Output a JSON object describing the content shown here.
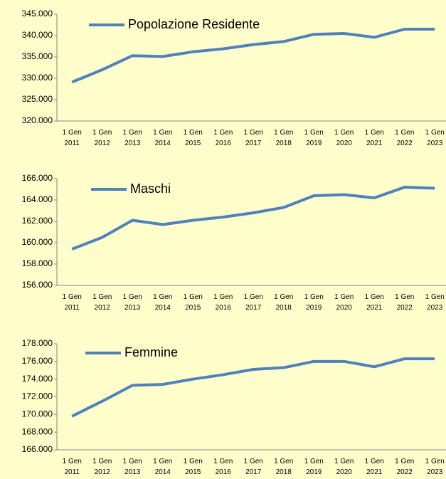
{
  "chart_data": [
    {
      "type": "line",
      "categories": [
        "1 Gen 2011",
        "1 Gen 2012",
        "1 Gen 2013",
        "1 Gen 2014",
        "1 Gen 2015",
        "1 Gen 2016",
        "1 Gen 2017",
        "1 Gen 2018",
        "1 Gen 2019",
        "1 Gen 2020",
        "1 Gen 2021",
        "1 Gen 2022",
        "1 Gen 2023"
      ],
      "series": [
        {
          "name": "Popolazione Residente",
          "color": "#4f81bd",
          "values": [
            329100,
            332000,
            335300,
            335100,
            336200,
            336900,
            337900,
            338600,
            340300,
            340500,
            339600,
            341500,
            341500
          ]
        }
      ],
      "ylim": [
        320000,
        345000
      ],
      "yticks": [
        {
          "value": 320000,
          "label": "320.000"
        },
        {
          "value": 325000,
          "label": "325.000"
        },
        {
          "value": 330000,
          "label": "330.000"
        },
        {
          "value": 335000,
          "label": "335.000"
        },
        {
          "value": 340000,
          "label": "340.000"
        },
        {
          "value": 345000,
          "label": "345.000"
        }
      ]
    },
    {
      "type": "line",
      "categories": [
        "1 Gen 2011",
        "1 Gen 2012",
        "1 Gen 2013",
        "1 Gen 2014",
        "1 Gen 2015",
        "1 Gen 2016",
        "1 Gen 2017",
        "1 Gen 2018",
        "1 Gen 2019",
        "1 Gen 2020",
        "1 Gen 2021",
        "1 Gen 2022",
        "1 Gen 2023"
      ],
      "series": [
        {
          "name": "Maschi",
          "color": "#4f81bd",
          "values": [
            159400,
            160500,
            162100,
            161700,
            162100,
            162400,
            162800,
            163300,
            164400,
            164500,
            164200,
            165200,
            165100
          ]
        }
      ],
      "ylim": [
        156000,
        166000
      ],
      "yticks": [
        {
          "value": 156000,
          "label": "156.000"
        },
        {
          "value": 158000,
          "label": "158.000"
        },
        {
          "value": 160000,
          "label": "160.000"
        },
        {
          "value": 162000,
          "label": "162.000"
        },
        {
          "value": 164000,
          "label": "164.000"
        },
        {
          "value": 166000,
          "label": "166.000"
        }
      ]
    },
    {
      "type": "line",
      "categories": [
        "1 Gen 2011",
        "1 Gen 2012",
        "1 Gen 2013",
        "1 Gen 2014",
        "1 Gen 2015",
        "1 Gen 2016",
        "1 Gen 2017",
        "1 Gen 2018",
        "1 Gen 2019",
        "1 Gen 2020",
        "1 Gen 2021",
        "1 Gen 2022",
        "1 Gen 2023"
      ],
      "series": [
        {
          "name": "Femmine",
          "color": "#4f81bd",
          "values": [
            169800,
            171500,
            173300,
            173400,
            174000,
            174500,
            175100,
            175300,
            176000,
            176000,
            175400,
            176300,
            176300
          ]
        }
      ],
      "ylim": [
        166000,
        178000
      ],
      "yticks": [
        {
          "value": 166000,
          "label": "166.000"
        },
        {
          "value": 168000,
          "label": "168.000"
        },
        {
          "value": 170000,
          "label": "170.000"
        },
        {
          "value": 172000,
          "label": "172.000"
        },
        {
          "value": 174000,
          "label": "174.000"
        },
        {
          "value": 176000,
          "label": "176.000"
        },
        {
          "value": 178000,
          "label": "178.000"
        }
      ]
    }
  ]
}
